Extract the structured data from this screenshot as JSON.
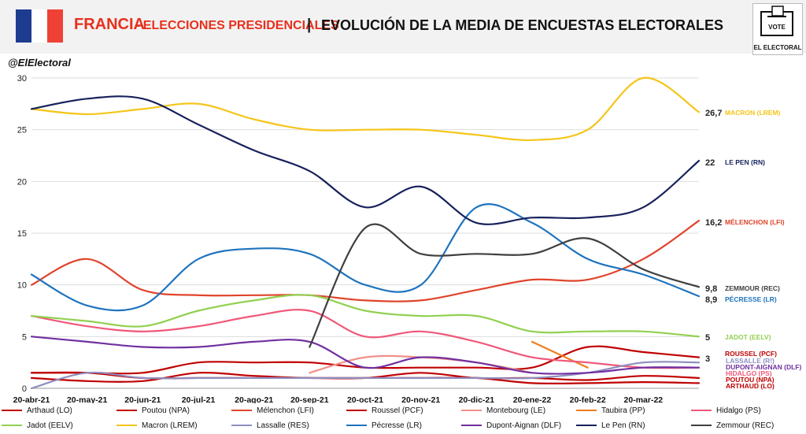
{
  "header": {
    "country": "FRANCIA",
    "elections": "- ELECCIONES PRESIDENCIALES",
    "separator": "|",
    "title": "EVOLUCIÓN DE LA MEDIA DE ENCUESTAS ELECTORALES",
    "logo_text": "EL ELECTORAL",
    "logo_vote": "VOTE",
    "flag_colors": [
      "#1d3b8f",
      "#ffffff",
      "#ef4135"
    ]
  },
  "watermark": "@ElElectoral",
  "chart_data": {
    "type": "line",
    "x": [
      "20-abr-21",
      "20-may-21",
      "20-jun-21",
      "20-jul-21",
      "20-ago-21",
      "20-sep-21",
      "20-oct-21",
      "20-nov-21",
      "20-dic-21",
      "20-ene-22",
      "20-feb-22",
      "20-mar-22",
      "10-abr-22"
    ],
    "xticks": [
      "20-abr-21",
      "20-may-21",
      "20-jun-21",
      "20-jul-21",
      "20-ago-21",
      "20-sep-21",
      "20-oct-21",
      "20-nov-21",
      "20-dic-21",
      "20-ene-22",
      "20-feb-22",
      "20-mar-22"
    ],
    "ylim": [
      0,
      30
    ],
    "yticks": [
      0,
      5,
      10,
      15,
      20,
      25,
      30
    ],
    "grid": true,
    "series": [
      {
        "name": "Arthaud (LO)",
        "color": "#c00000",
        "values": [
          1.5,
          1.5,
          1.0,
          1.0,
          1.0,
          1.0,
          1.0,
          1.0,
          1.0,
          0.5,
          0.5,
          0.6,
          0.5
        ],
        "end_label": "ARTHAUD (LO)"
      },
      {
        "name": "Poutou (NPA)",
        "color": "#c00000",
        "values": [
          1.0,
          0.7,
          0.7,
          1.5,
          1.2,
          1.0,
          1.0,
          1.5,
          1.0,
          1.0,
          0.8,
          1.2,
          1.0
        ],
        "end_label": "POUTOU (NPA)"
      },
      {
        "name": "Mélenchon (LFI)",
        "color": "#e0442c",
        "values": [
          10.0,
          12.5,
          9.5,
          9.0,
          9.0,
          9.0,
          8.5,
          8.5,
          9.5,
          10.5,
          10.5,
          12.5,
          16.2
        ],
        "end_label": "MÉLENCHON (LFI)",
        "end_value": "16,2"
      },
      {
        "name": "Roussel (PCF)",
        "color": "#c00000",
        "values": [
          1.5,
          1.5,
          1.5,
          2.5,
          2.5,
          2.5,
          2.0,
          2.0,
          2.0,
          2.0,
          4.0,
          3.5,
          3.0
        ],
        "end_label": "ROUSSEL (PCF)",
        "end_value": "3"
      },
      {
        "name": "Montebourg (LE)",
        "color": "#f0908a",
        "values": [
          null,
          null,
          null,
          null,
          null,
          1.5,
          3.0,
          3.0,
          2.5,
          1.5,
          null,
          null,
          null
        ]
      },
      {
        "name": "Taubira (PP)",
        "color": "#ef7d1f",
        "values": [
          null,
          null,
          null,
          null,
          null,
          null,
          null,
          null,
          null,
          4.5,
          2.0,
          null,
          null
        ]
      },
      {
        "name": "Hidalgo (PS)",
        "color": "#f0587a",
        "values": [
          7.0,
          6.0,
          5.5,
          6.0,
          7.0,
          7.5,
          5.0,
          5.5,
          4.5,
          3.0,
          2.5,
          2.0,
          2.0
        ],
        "end_label": "HIDALGO (PS)"
      },
      {
        "name": "Jadot (EELV)",
        "color": "#92d050",
        "values": [
          7.0,
          6.5,
          6.0,
          7.5,
          8.5,
          9.0,
          7.5,
          7.0,
          7.0,
          5.5,
          5.5,
          5.5,
          5.0
        ],
        "end_label": "JADOT (EELV)",
        "end_value": "5"
      },
      {
        "name": "Macron (LREM)",
        "color": "#f5c518",
        "values": [
          27.0,
          26.5,
          27.0,
          27.5,
          26.0,
          25.0,
          25.0,
          25.0,
          24.5,
          24.0,
          25.0,
          30.0,
          26.7
        ],
        "end_label": "MACRON (LREM)",
        "end_value": "26,7"
      },
      {
        "name": "Lassalle (RES)",
        "color": "#8e8fbf",
        "values": [
          0.0,
          1.5,
          1.0,
          1.0,
          1.0,
          1.0,
          1.0,
          1.0,
          1.0,
          1.0,
          1.5,
          2.5,
          2.5
        ],
        "end_label": "LASSALLE (R!)"
      },
      {
        "name": "Pécresse (LR)",
        "color": "#1e73be",
        "values": [
          11.0,
          8.0,
          8.0,
          12.5,
          13.5,
          13.0,
          10.0,
          10.0,
          17.5,
          16.0,
          12.5,
          11.0,
          8.9
        ],
        "end_label": "PÉCRESSE (LR)",
        "end_value": "8,9"
      },
      {
        "name": "Dupont-Aignan (DLF)",
        "color": "#7030a0",
        "values": [
          5.0,
          4.5,
          4.0,
          4.0,
          4.5,
          4.5,
          2.0,
          3.0,
          2.5,
          1.5,
          1.5,
          2.0,
          2.0
        ],
        "end_label": "DUPONT-AIGNAN (DLF)"
      },
      {
        "name": "Le Pen (RN)",
        "color": "#16215b",
        "values": [
          27.0,
          28.0,
          28.0,
          25.5,
          23.0,
          21.0,
          17.5,
          19.5,
          16.0,
          16.5,
          16.5,
          17.5,
          22.0
        ],
        "end_label": "LE PEN (RN)",
        "end_value": "22"
      },
      {
        "name": "Zemmour (REC)",
        "color": "#3f3f3f",
        "values": [
          null,
          null,
          null,
          null,
          null,
          4.0,
          15.5,
          13.0,
          13.0,
          13.0,
          14.5,
          11.5,
          9.8
        ],
        "end_label": "ZEMMOUR (REC)",
        "end_value": "9,8"
      }
    ]
  }
}
